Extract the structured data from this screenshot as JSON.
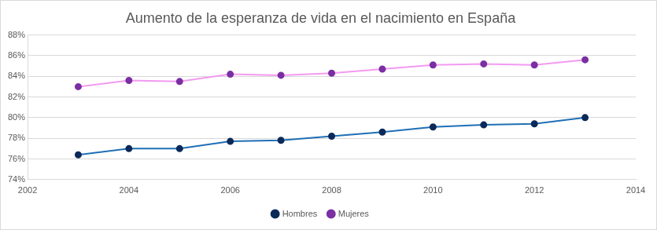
{
  "chart_data": {
    "type": "line",
    "title": "Aumento de la esperanza de vida en el nacimiento en España",
    "x": [
      2003,
      2004,
      2005,
      2006,
      2007,
      2008,
      2009,
      2010,
      2011,
      2012,
      2013
    ],
    "series": [
      {
        "name": "Hombres",
        "color": "#1f6fb5",
        "marker": "circle",
        "values": [
          76.4,
          77.0,
          77.0,
          77.7,
          77.8,
          78.2,
          78.6,
          79.1,
          79.3,
          79.4,
          80.0
        ]
      },
      {
        "name": "Mujeres",
        "color": "#f39af0",
        "marker": "circle",
        "values": [
          83.0,
          83.6,
          83.5,
          84.2,
          84.1,
          84.3,
          84.7,
          85.1,
          85.2,
          85.1,
          85.6
        ]
      }
    ],
    "xlim": [
      2002,
      2014
    ],
    "xticks": [
      2002,
      2004,
      2006,
      2008,
      2010,
      2012,
      2014
    ],
    "ylim": [
      74,
      88
    ],
    "yticks": [
      {
        "value": 74,
        "label": "74%"
      },
      {
        "value": 76,
        "label": "76%"
      },
      {
        "value": 78,
        "label": "78%"
      },
      {
        "value": 80,
        "label": "80%"
      },
      {
        "value": 82,
        "label": "82%"
      },
      {
        "value": 84,
        "label": "84%"
      },
      {
        "value": 86,
        "label": "86%"
      },
      {
        "value": 88,
        "label": "88%"
      }
    ],
    "grid": true,
    "legend": "bottom"
  }
}
